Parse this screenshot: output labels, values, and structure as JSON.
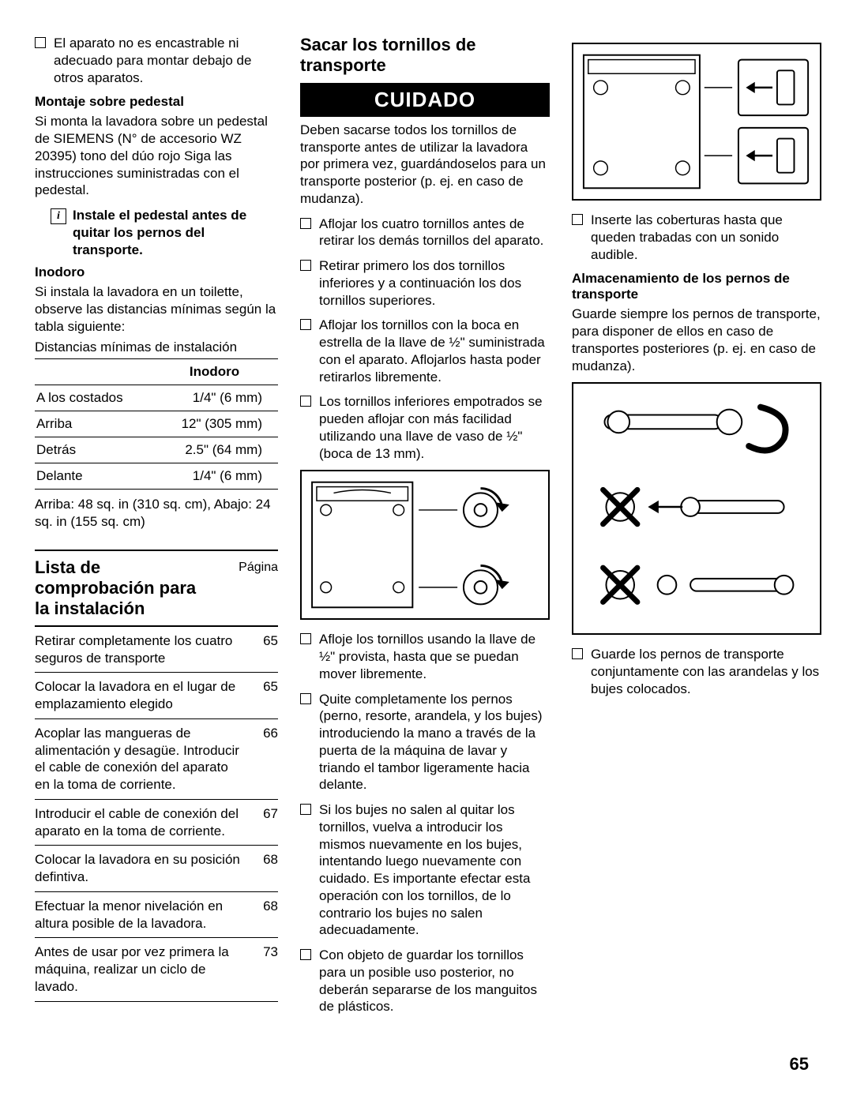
{
  "col1": {
    "intro_bullet": "El aparato no es encastrable ni adecuado para montar debajo de otros aparatos.",
    "pedestal_title": "Montaje sobre pedestal",
    "pedestal_text": "Si monta la lavadora sobre un pedestal de SIEMENS (N° de accesorio WZ 20395) tono del dúo rojo Siga las instrucciones suministradas con el pedestal.",
    "info_text": "Instale el pedestal antes de quitar los pernos del transporte.",
    "inodoro_title": "Inodoro",
    "inodoro_text": "Si instala la lavadora en un toilette, observe las distancias mínimas según la tabla siguiente:",
    "distancias_label": "Distancias mínimas de instalación",
    "table_header": "Inodoro",
    "table_rows": [
      {
        "label": "A los costados",
        "value": "1/4\" (6 mm)"
      },
      {
        "label": "Arriba",
        "value": "12\" (305 mm)"
      },
      {
        "label": "Detrás",
        "value": "2.5\" (64 mm)"
      },
      {
        "label": "Delante",
        "value": "1/4\" (6 mm)"
      }
    ],
    "table_footer": "Arriba: 48 sq. in (310 sq. cm), Abajo: 24 sq. in (155 sq. cm)",
    "checklist_title": "Lista de comprobación para la instalación",
    "checklist_page_label": "Página",
    "checklist": [
      {
        "text": "Retirar completamente los cuatro seguros de transporte",
        "page": "65"
      },
      {
        "text": "Colocar la lavadora en el lugar de emplazamiento elegido",
        "page": "65"
      },
      {
        "text": "Acoplar las mangueras de alimentación y desagüe. Introducir el cable de conexión del aparato en la toma de corriente.",
        "page": "66"
      },
      {
        "text": "Introducir el cable de conexión del aparato en la toma de corriente.",
        "page": "67"
      },
      {
        "text": "Colocar la lavadora en su posición defintiva.",
        "page": "68"
      },
      {
        "text": "Efectuar la menor nivelación en altura posible de la lavadora.",
        "page": "68"
      },
      {
        "text": "Antes de usar por vez primera la máquina, realizar un ciclo de lavado.",
        "page": "73"
      }
    ]
  },
  "col2": {
    "title": "Sacar los tornillos de transporte",
    "banner": "CUIDADO",
    "warn_text": "Deben sacarse todos los tornillos de transporte antes de utilizar la lavadora por primera vez, guardándoselos para un transporte posterior (p. ej. en caso de mudanza).",
    "bullets_top": [
      "Aflojar los cuatro tornillos antes de retirar los demás tornillos del aparato.",
      "Retirar primero los dos tornillos inferiores y a continuación los dos tornillos superiores.",
      "Aflojar los tornillos con la boca en estrella de la llave de ½\" suministrada con el aparato. Aflojarlos hasta poder retirarlos libremente.",
      "Los tornillos inferiores empotrados se pueden aflojar con más facilidad utilizando una llave de vaso de ½\" (boca de 13 mm)."
    ],
    "bullets_bottom": [
      "Afloje los tornillos usando la llave de ½\" provista, hasta que se puedan mover libremente.",
      "Quite completamente los pernos (perno, resorte, arandela, y los bujes) introduciendo la mano a través de la puerta de la máquina de lavar y triando el tambor ligeramente hacia delante.",
      "Si los bujes no salen al quitar los tornillos, vuelva a introducir los mismos nuevamente en los bujes, intentando luego nuevamente con cuidado.  Es importante efectar esta operación con los tornillos, de lo contrario los bujes no salen adecuadamente.",
      "Con objeto de guardar los tornillos para un posible uso posterior, no deberán separarse de los manguitos de plásticos."
    ]
  },
  "col3": {
    "bullet1": "Inserte las coberturas hasta que queden trabadas con un sonido audible.",
    "storage_title": "Almacenamiento de los pernos de transporte",
    "storage_text": "Guarde siempre los pernos de transporte, para disponer de ellos en caso de transportes posteriores (p. ej. en caso de mudanza).",
    "bullet2": "Guarde los pernos de transporte conjuntamente con las arandelas y los bujes colocados."
  },
  "page_number": "65"
}
